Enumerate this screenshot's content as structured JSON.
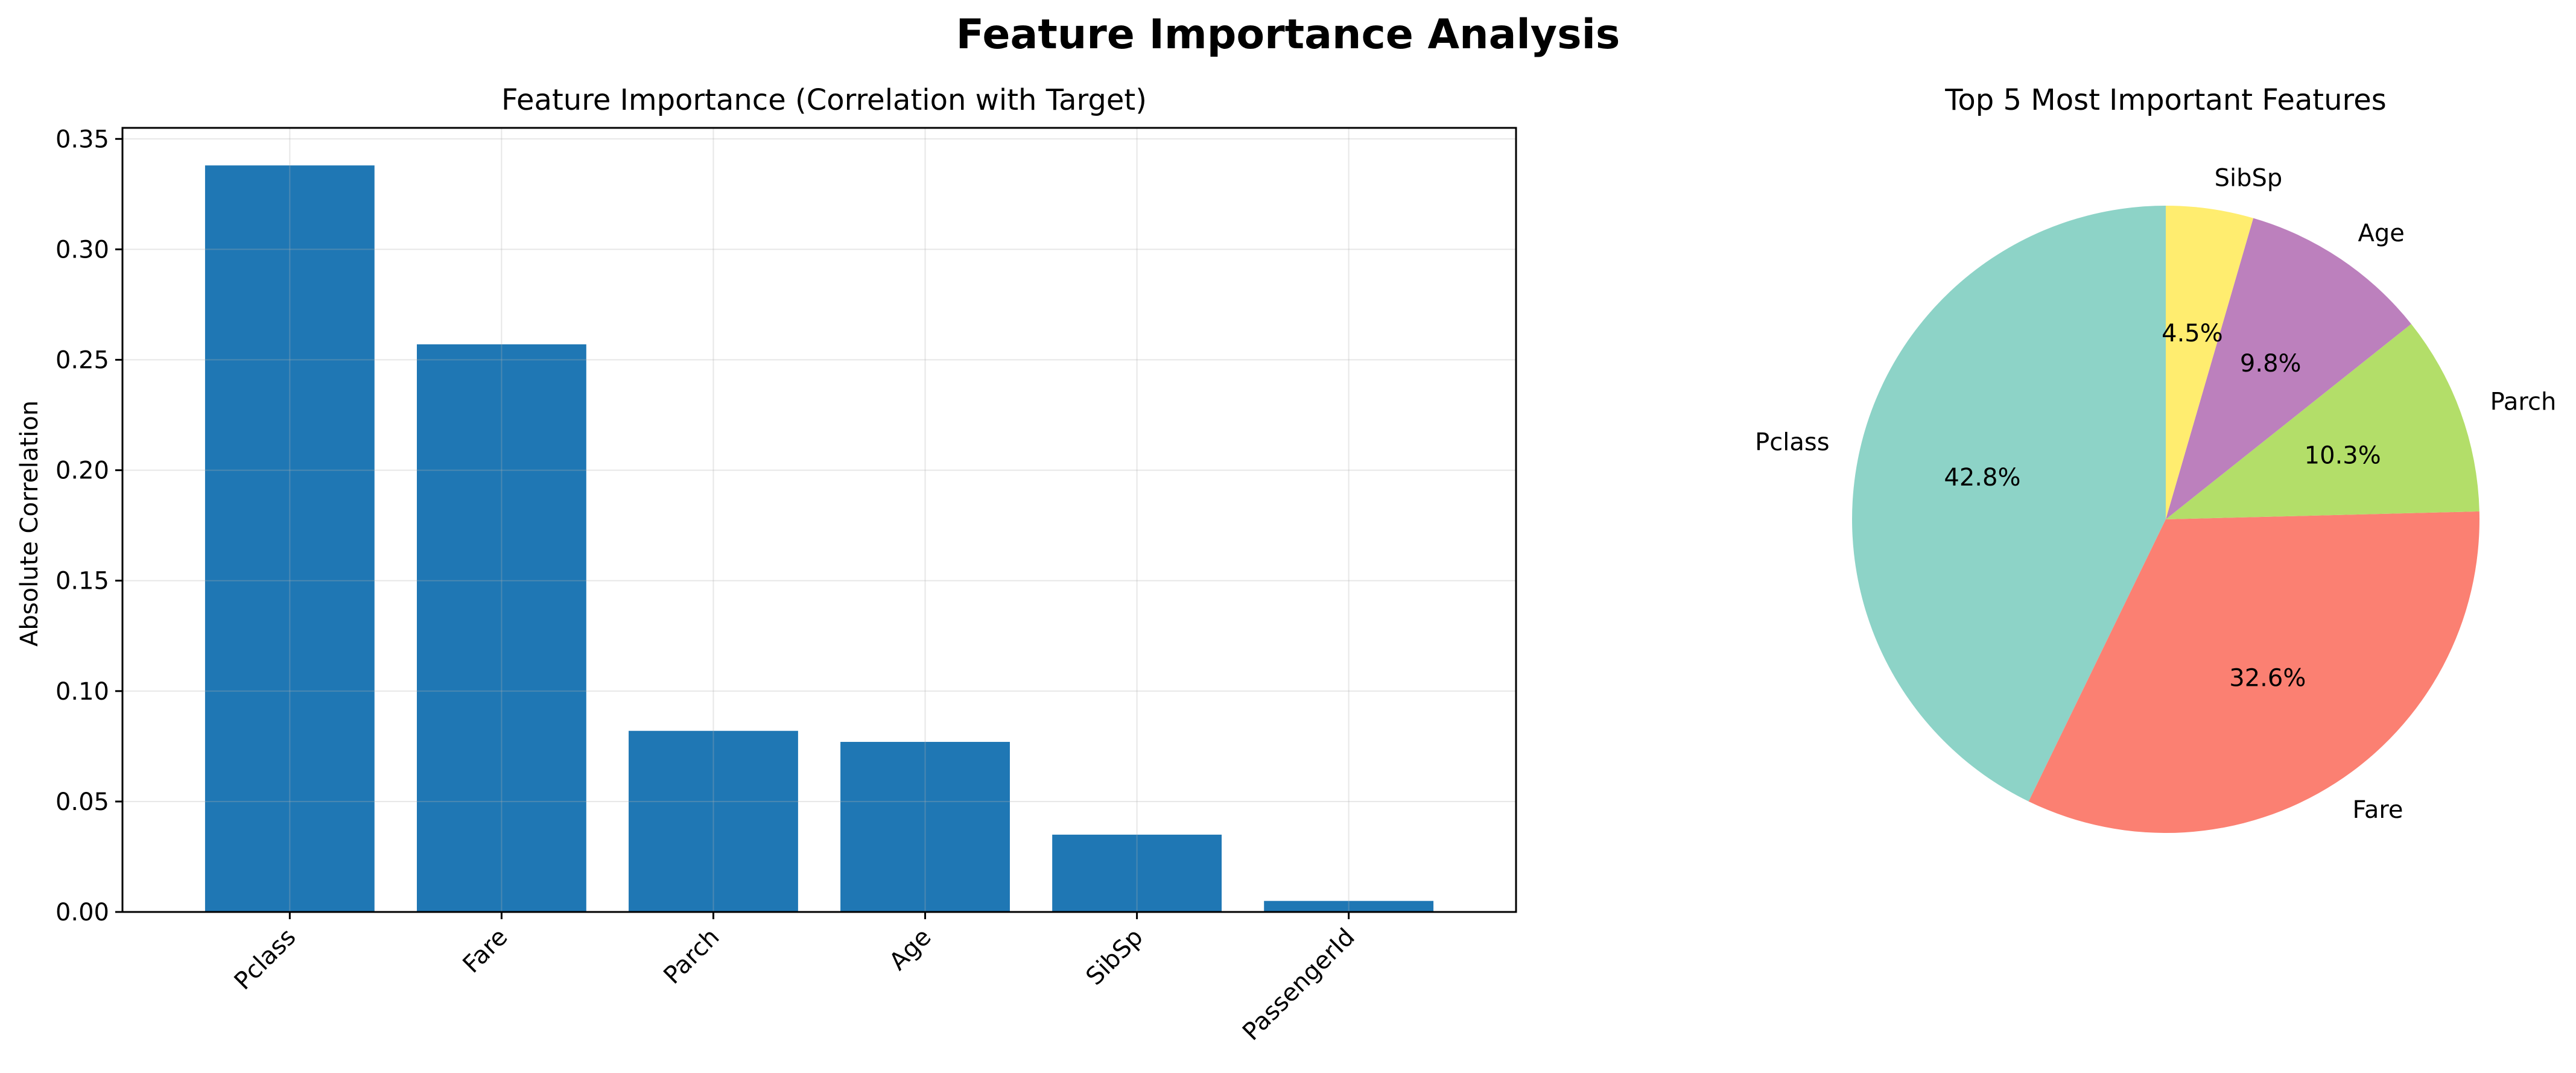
{
  "figure": {
    "title": "Feature Importance Analysis"
  },
  "chart_data": [
    {
      "type": "bar",
      "title": "Feature Importance (Correlation with Target)",
      "xlabel": "",
      "ylabel": "Absolute Correlation",
      "categories": [
        "Pclass",
        "Fare",
        "Parch",
        "Age",
        "SibSp",
        "PassengerId"
      ],
      "values": [
        0.338,
        0.257,
        0.082,
        0.077,
        0.035,
        0.005
      ],
      "ylim": [
        0,
        0.355
      ],
      "yticks": [
        0.0,
        0.05,
        0.1,
        0.15,
        0.2,
        0.25,
        0.3,
        0.35
      ],
      "ytick_labels": [
        "0.00",
        "0.05",
        "0.10",
        "0.15",
        "0.20",
        "0.25",
        "0.30",
        "0.35"
      ],
      "grid": true,
      "bar_color": "#1f77b4"
    },
    {
      "type": "pie",
      "title": "Top 5 Most Important Features",
      "labels": [
        "Pclass",
        "Fare",
        "Parch",
        "Age",
        "SibSp"
      ],
      "values": [
        42.8,
        32.6,
        10.3,
        9.8,
        4.5
      ],
      "pct_labels": [
        "42.8%",
        "32.6%",
        "10.3%",
        "9.8%",
        "4.5%"
      ],
      "colors": [
        "#8dd3c7",
        "#fb8072",
        "#b3de69",
        "#bc80bd",
        "#ffed6f"
      ],
      "start_angle": 90,
      "direction": "counterclockwise"
    }
  ]
}
